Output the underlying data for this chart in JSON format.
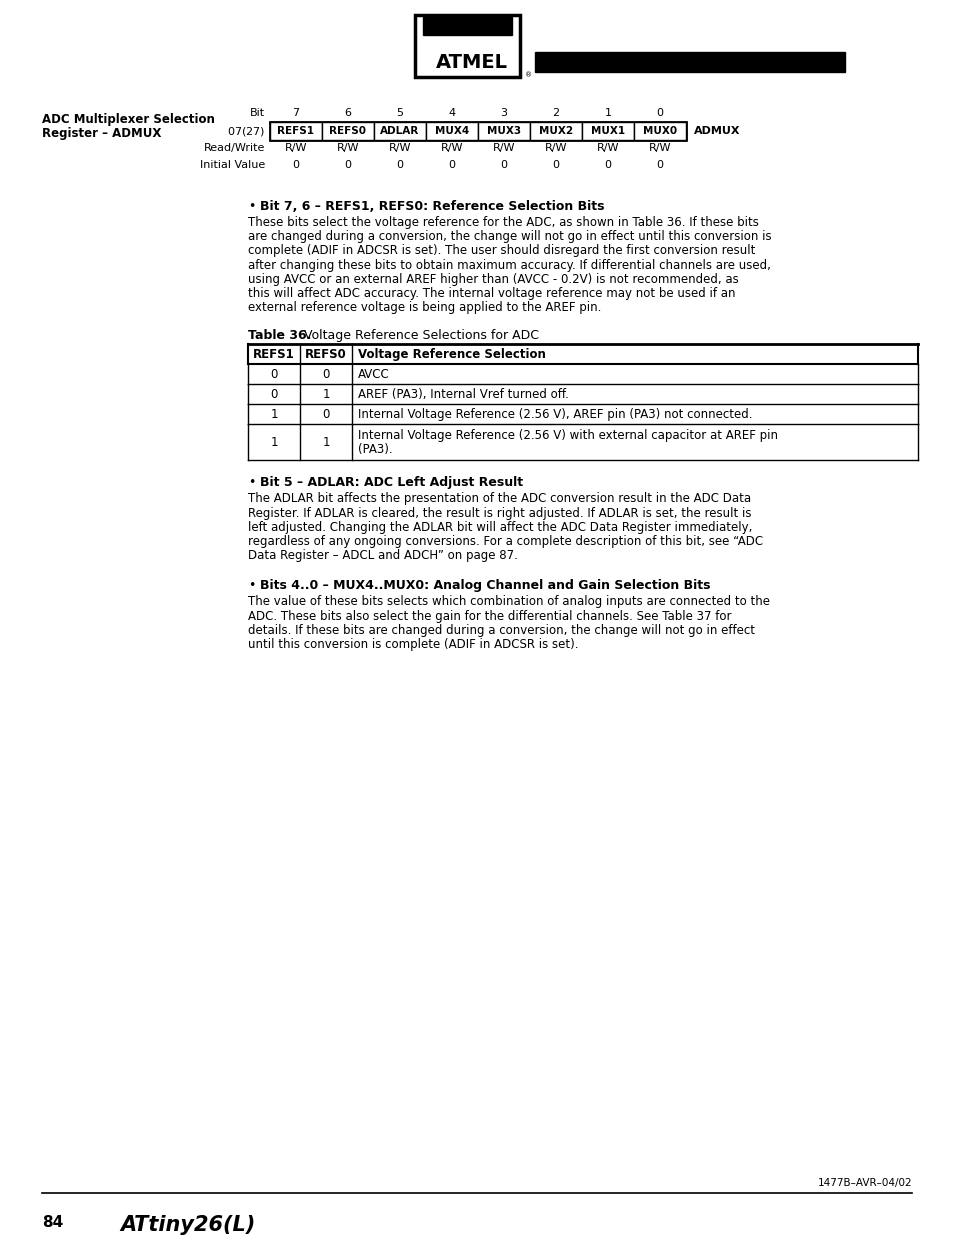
{
  "page_bg": "#ffffff",
  "left_title_line1": "ADC Multiplexer Selection",
  "left_title_line2": "Register – ADMUX",
  "register_label": "$07 ($27)",
  "register_name": "ADMUX",
  "bit_numbers": [
    "7",
    "6",
    "5",
    "4",
    "3",
    "2",
    "1",
    "0"
  ],
  "bit_names": [
    "REFS1",
    "REFS0",
    "ADLAR",
    "MUX4",
    "MUX3",
    "MUX2",
    "MUX1",
    "MUX0"
  ],
  "rw_values": [
    "R/W",
    "R/W",
    "R/W",
    "R/W",
    "R/W",
    "R/W",
    "R/W",
    "R/W"
  ],
  "init_values": [
    "0",
    "0",
    "0",
    "0",
    "0",
    "0",
    "0",
    "0"
  ],
  "bullet1_title": "Bit 7, 6 – REFS1, REFS0: Reference Selection Bits",
  "table36_title_bold": "Table 36.",
  "table36_title_rest": "  Voltage Reference Selections for ADC",
  "table36_headers": [
    "REFS1",
    "REFS0",
    "Voltage Reference Selection"
  ],
  "table36_rows": [
    [
      "0",
      "0",
      "AVCC"
    ],
    [
      "0",
      "1",
      "AREF (PA3), Internal Vref turned off."
    ],
    [
      "1",
      "0",
      "Internal Voltage Reference (2.56 V), AREF pin (PA3) not connected."
    ],
    [
      "1",
      "1",
      "Internal Voltage Reference (2.56 V) with external capacitor at AREF pin\n(PA3)."
    ]
  ],
  "bullet2_title": "Bit 5 – ADLAR: ADC Left Adjust Result",
  "bullet3_title": "Bits 4..0 – MUX4..MUX0: Analog Channel and Gain Selection Bits",
  "footer_page": "84",
  "footer_chip": "ATtiny26(L)",
  "footer_doc": "1477B–AVR–04/02"
}
